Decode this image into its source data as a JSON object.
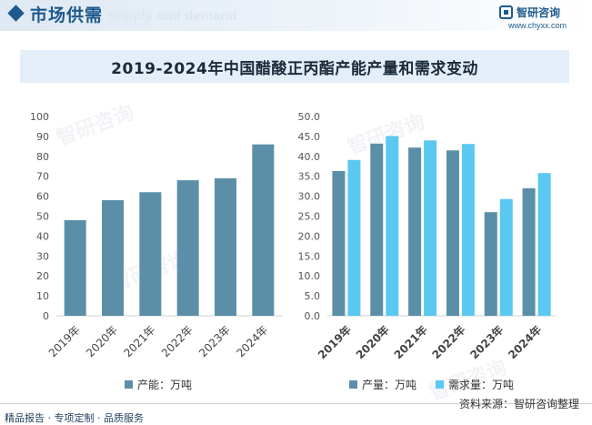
{
  "header": {
    "section_title": "市场供需",
    "section_ghost": "Supply and demand",
    "brand_name": "智研咨询",
    "brand_url": "www.chyxx.com"
  },
  "watermark": "智研咨询",
  "colors": {
    "header_blue": "#1e5a8c",
    "output_bar": "#5b8fa8",
    "demand_bar": "#5ac8f0"
  },
  "footer": {
    "left": "精品报告 · 专项定制 · 品质服务",
    "source": "资料来源：智研咨询整理"
  },
  "chart_data": {
    "title": "2019-2024年中国醋酸正丙酯产能产量和需求变动",
    "charts": [
      {
        "type": "bar",
        "categories": [
          "2019年",
          "2020年",
          "2021年",
          "2022年",
          "2023年",
          "2024年"
        ],
        "series": [
          {
            "name": "产能：万吨",
            "values": [
              48,
              58,
              62,
              68,
              69,
              86
            ],
            "color": "#5b8fa8"
          }
        ],
        "ylim": [
          0,
          100
        ],
        "yticks": [
          "0",
          "10",
          "20",
          "30",
          "40",
          "50",
          "60",
          "70",
          "80",
          "90",
          "100"
        ],
        "grid": false,
        "legend": "bottom"
      },
      {
        "type": "bar",
        "categories": [
          "2019年",
          "2020年",
          "2021年",
          "2022年",
          "2023年",
          "2024年"
        ],
        "series": [
          {
            "name": "产量：万吨",
            "values": [
              36.3,
              43.2,
              42.2,
              41.5,
              26.0,
              32.0
            ],
            "color": "#5b8fa8"
          },
          {
            "name": "需求量：万吨",
            "values": [
              39.1,
              45.1,
              44.0,
              43.1,
              29.3,
              35.8
            ],
            "color": "#5ac8f0"
          }
        ],
        "ylim": [
          0,
          50
        ],
        "yticks": [
          "0.0",
          "5.0",
          "10.0",
          "15.0",
          "20.0",
          "25.0",
          "30.0",
          "35.0",
          "40.0",
          "45.0",
          "50.0"
        ],
        "grid": false,
        "legend": "bottom"
      }
    ]
  }
}
